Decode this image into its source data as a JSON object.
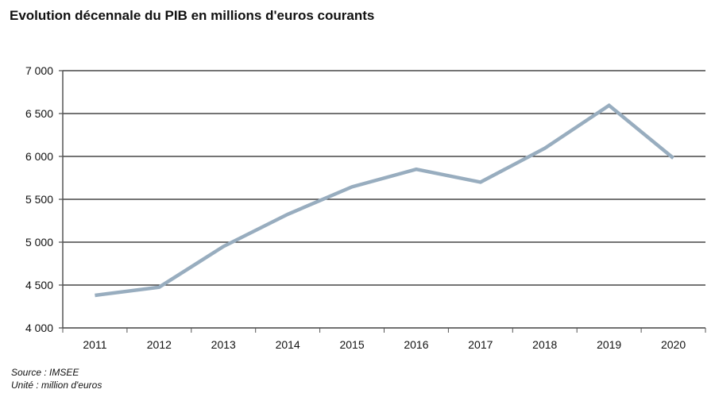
{
  "chart_data": {
    "type": "line",
    "title": "Evolution décennale du PIB en millions d'euros courants",
    "categories": [
      "2011",
      "2012",
      "2013",
      "2014",
      "2015",
      "2016",
      "2017",
      "2018",
      "2019",
      "2020"
    ],
    "series": [
      {
        "values": [
          4380,
          4475,
          4950,
          5325,
          5645,
          5850,
          5700,
          6095,
          6595,
          5980
        ],
        "color": "#98adbf"
      }
    ],
    "ylim": [
      4000,
      7000
    ],
    "yticks": [
      4000,
      4500,
      5000,
      5500,
      6000,
      6500,
      7000
    ],
    "ytick_labels": [
      "4 000",
      "4 500",
      "5 000",
      "5 500",
      "6 000",
      "6 500",
      "7 000"
    ],
    "grid": true,
    "xlabel": "",
    "ylabel": ""
  },
  "footer": {
    "source": "Source : IMSEE",
    "unit": "Unité : million d'euros"
  }
}
